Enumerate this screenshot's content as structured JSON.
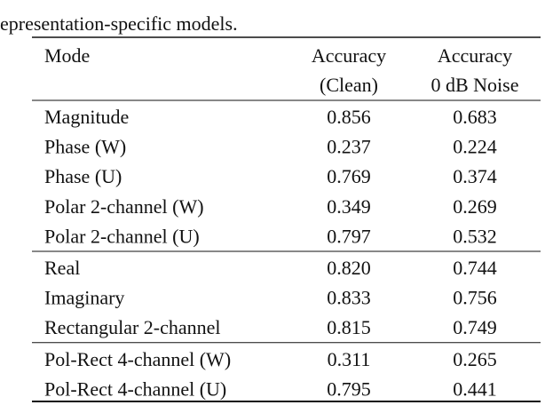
{
  "caption": "epresentation-specific models.",
  "table": {
    "header": [
      [
        "Mode"
      ],
      [
        "Accuracy",
        "(Clean)"
      ],
      [
        "Accuracy",
        "0 dB Noise"
      ]
    ],
    "groups": [
      [
        [
          "Magnitude",
          "0.856",
          "0.683"
        ],
        [
          "Phase (W)",
          "0.237",
          "0.224"
        ],
        [
          "Phase (U)",
          "0.769",
          "0.374"
        ],
        [
          "Polar 2-channel (W)",
          "0.349",
          "0.269"
        ],
        [
          "Polar 2-channel (U)",
          "0.797",
          "0.532"
        ]
      ],
      [
        [
          "Real",
          "0.820",
          "0.744"
        ],
        [
          "Imaginary",
          "0.833",
          "0.756"
        ],
        [
          "Rectangular 2-channel",
          "0.815",
          "0.749"
        ]
      ],
      [
        [
          "Pol-Rect 4-channel (W)",
          "0.311",
          "0.265"
        ],
        [
          "Pol-Rect 4-channel (U)",
          "0.795",
          "0.441"
        ]
      ]
    ]
  }
}
